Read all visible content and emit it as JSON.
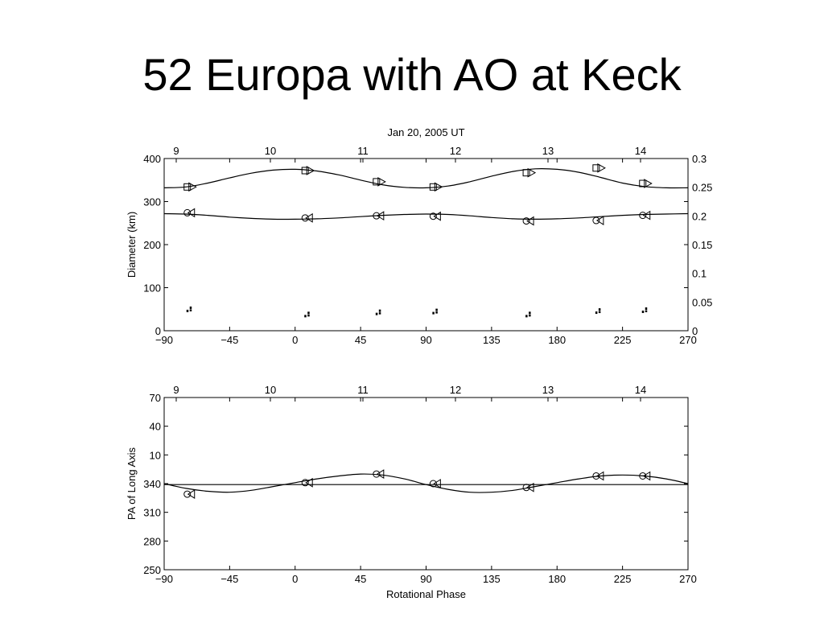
{
  "slide": {
    "title": "52 Europa with AO at Keck"
  },
  "chart_data": [
    {
      "type": "line",
      "title": "Jan 20, 2005 UT",
      "xlabel": "",
      "ylabel": "Diameter (km)",
      "xlim": [
        -90,
        270
      ],
      "ylim": [
        0,
        400
      ],
      "y2lim": [
        0,
        0.3
      ],
      "xticks": [
        "−90",
        "−45",
        "0",
        "45",
        "90",
        "135",
        "180",
        "225",
        "270"
      ],
      "yticks": [
        "0",
        "100",
        "200",
        "300",
        "400"
      ],
      "y2ticks": [
        "0",
        "0.05",
        "0.1",
        "0.15",
        "0.2",
        "0.25",
        "0.3"
      ],
      "top_axis_ticks": [
        "9",
        "10",
        "11",
        "12",
        "13",
        "14"
      ],
      "series": [
        {
          "type": "line",
          "x": [
            -90,
            -75,
            -60,
            -45,
            -30,
            -15,
            0,
            15,
            30,
            45,
            60,
            75,
            90,
            105,
            120,
            135,
            150,
            165,
            180,
            195,
            210,
            225,
            240,
            255,
            270
          ],
          "y": [
            332,
            334,
            343,
            355,
            366,
            373,
            375,
            371,
            362,
            350,
            339,
            333,
            332,
            336,
            346,
            359,
            370,
            376,
            375,
            368,
            356,
            343,
            335,
            332,
            332
          ]
        },
        {
          "type": "line",
          "x": [
            -90,
            -75,
            -60,
            -45,
            -30,
            -15,
            0,
            15,
            30,
            45,
            60,
            75,
            90,
            105,
            120,
            135,
            150,
            165,
            180,
            195,
            210,
            225,
            240,
            255,
            270
          ],
          "y": [
            272,
            271,
            268,
            264,
            261,
            259,
            259,
            260,
            262,
            265,
            268,
            270,
            271,
            270,
            267,
            263,
            260,
            259,
            260,
            262,
            265,
            268,
            270,
            271,
            272
          ]
        },
        {
          "type": "markers",
          "marker": "square-triangle",
          "x": [
            -73,
            8,
            57,
            96,
            160,
            208,
            240
          ],
          "y": [
            334,
            372,
            346,
            334,
            367,
            378,
            342
          ]
        },
        {
          "type": "markers",
          "marker": "circle-triangle",
          "x": [
            -73,
            8,
            57,
            96,
            160,
            208,
            240
          ],
          "y": [
            274,
            262,
            267,
            266,
            255,
            256,
            268
          ]
        },
        {
          "type": "markers",
          "marker": "dot-pair",
          "x": [
            -73,
            8,
            57,
            96,
            160,
            208,
            240
          ],
          "y": [
            45,
            33,
            38,
            40,
            33,
            41,
            43
          ]
        }
      ]
    },
    {
      "type": "line",
      "title": "",
      "xlabel": "Rotational Phase",
      "ylabel": "PA of Long Axis",
      "xlim": [
        -90,
        270
      ],
      "ylim": [
        250,
        430
      ],
      "xticks": [
        "−90",
        "−45",
        "0",
        "45",
        "90",
        "135",
        "180",
        "225",
        "270"
      ],
      "yticks": [
        "250",
        "280",
        "310",
        "340",
        "10",
        "40",
        "70"
      ],
      "top_axis_ticks": [
        "9",
        "10",
        "11",
        "12",
        "13",
        "14"
      ],
      "series": [
        {
          "type": "line",
          "x": [
            -90,
            -75,
            -60,
            -45,
            -30,
            -15,
            0,
            15,
            30,
            45,
            60,
            75,
            90,
            105,
            120,
            135,
            150,
            165,
            180,
            195,
            210,
            225,
            240,
            255,
            270
          ],
          "y": [
            340,
            335,
            332,
            331,
            333,
            337,
            341,
            345,
            348,
            350,
            349,
            345,
            339,
            334,
            331,
            331,
            333,
            337,
            341,
            345,
            348,
            349,
            348,
            345,
            340
          ]
        },
        {
          "type": "line",
          "x": [
            -90,
            270
          ],
          "y": [
            339,
            339
          ]
        },
        {
          "type": "markers",
          "marker": "circle-triangle",
          "x": [
            -73,
            8,
            57,
            96,
            160,
            208,
            240
          ],
          "y": [
            329,
            341,
            350,
            340,
            336,
            348,
            348
          ]
        }
      ]
    }
  ]
}
